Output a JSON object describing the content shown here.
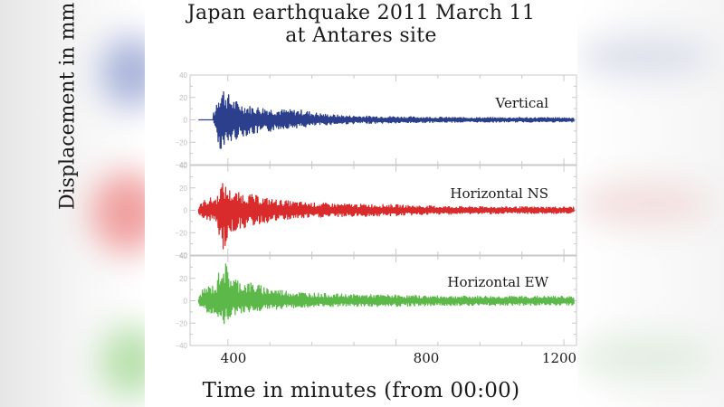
{
  "title": {
    "line1": "Japan earthquake 2011 March 11",
    "line2": "at Antares site"
  },
  "colors": {
    "vertical": "#2b3f8c",
    "horizontal_ns": "#d92b2b",
    "horizontal_ew": "#5db84a",
    "axis": "#c8c8c8",
    "text": "#1a1a1a"
  },
  "chart_data": {
    "type": "line",
    "title": "Japan earthquake 2011 March 11 at Antares site",
    "xlabel": "Time in minutes (from 00:00)",
    "ylabel": "Displacement in mm",
    "xlim": [
      310,
      1230
    ],
    "x_ticks": [
      400,
      800,
      1200
    ],
    "grid": false,
    "legend_position": "inline label, top-right of each panel",
    "panels": [
      {
        "name": "Vertical",
        "color": "#2b3f8c",
        "ylim": [
          -40,
          40
        ],
        "y_ticks": [
          -40,
          -20,
          0,
          20,
          40
        ],
        "events": [
          {
            "x": 330,
            "y_range": [
              0,
              0
            ],
            "note": "flat before onset"
          },
          {
            "x": 370,
            "y_range": [
              -5,
              8
            ],
            "note": "P-wave onset"
          },
          {
            "x": 390,
            "y_range": [
              -29,
              30
            ],
            "note": "main peak"
          },
          {
            "x": 495,
            "y_range": [
              -12,
              11
            ],
            "note": "secondary burst"
          },
          {
            "x": 580,
            "y_range": [
              -7,
              9
            ],
            "note": "tertiary burst"
          },
          {
            "x": 800,
            "y_range": [
              -3,
              3
            ]
          },
          {
            "x": 1200,
            "y_range": [
              -2,
              2
            ]
          }
        ]
      },
      {
        "name": "Horizontal NS",
        "color": "#d92b2b",
        "ylim": [
          -40,
          40
        ],
        "y_ticks": [
          -40,
          -20,
          0,
          20,
          40
        ],
        "events": [
          {
            "x": 330,
            "y_range": [
              -2,
              2
            ]
          },
          {
            "x": 375,
            "y_range": [
              -10,
              12
            ],
            "note": "onset"
          },
          {
            "x": 390,
            "y_range": [
              -38,
              25
            ],
            "note": "main peak"
          },
          {
            "x": 450,
            "y_range": [
              -15,
              15
            ]
          },
          {
            "x": 800,
            "y_range": [
              -5,
              5
            ]
          },
          {
            "x": 1200,
            "y_range": [
              -3,
              3
            ]
          }
        ]
      },
      {
        "name": "Horizontal EW",
        "color": "#5db84a",
        "ylim": [
          -40,
          40
        ],
        "y_ticks": [
          -40,
          -20,
          0,
          20,
          40
        ],
        "events": [
          {
            "x": 330,
            "y_range": [
              -2,
              2
            ]
          },
          {
            "x": 375,
            "y_range": [
              -12,
              15
            ],
            "note": "onset"
          },
          {
            "x": 390,
            "y_range": [
              -22,
              40
            ],
            "note": "main peak"
          },
          {
            "x": 460,
            "y_range": [
              -10,
              16
            ]
          },
          {
            "x": 800,
            "y_range": [
              -5,
              5
            ]
          },
          {
            "x": 1200,
            "y_range": [
              -4,
              4
            ]
          }
        ]
      }
    ]
  },
  "axis": {
    "x_tick_labels": [
      "400",
      "800",
      "1200"
    ],
    "y_tick_labels": [
      "40",
      "20",
      "0",
      "-20",
      "-40"
    ]
  },
  "labels": {
    "vertical": "Vertical",
    "horizontal_ns": "Horizontal NS",
    "horizontal_ew": "Horizontal EW",
    "xlabel": "Time in minutes (from 00:00)",
    "ylabel": "Displacement in mm"
  }
}
